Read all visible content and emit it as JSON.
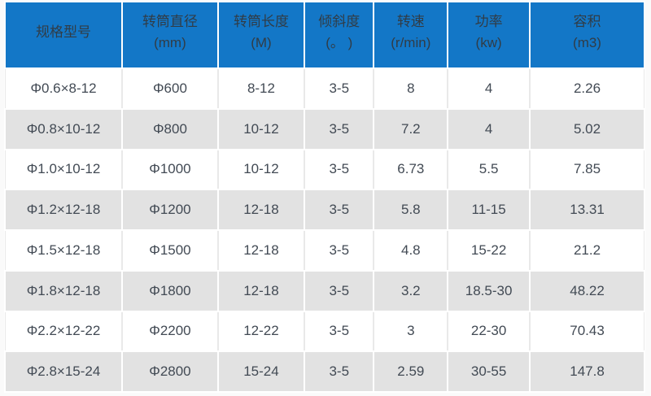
{
  "colors": {
    "header_bg": "#1377c7",
    "header_text": "#313c46",
    "row_bg": "#ffffff",
    "row_alt_bg": "#e2e2e2",
    "cell_text": "#424a54"
  },
  "chart_data": {
    "type": "table",
    "title": "",
    "columns": [
      {
        "label": "规格型号",
        "unit": ""
      },
      {
        "label": "转筒直径",
        "unit": "(mm)"
      },
      {
        "label": "转筒长度",
        "unit": "(M)"
      },
      {
        "label": "倾斜度",
        "unit": "(。 )"
      },
      {
        "label": "转速",
        "unit": "(r/min)"
      },
      {
        "label": "功率",
        "unit": "(kw)"
      },
      {
        "label": "容积",
        "unit": "(m3)"
      }
    ],
    "rows": [
      [
        "Φ0.6×8-12",
        "Φ600",
        "8-12",
        "3-5",
        "8",
        "4",
        "2.26"
      ],
      [
        "Φ0.8×10-12",
        "Φ800",
        "10-12",
        "3-5",
        "7.2",
        "4",
        "5.02"
      ],
      [
        "Φ1.0×10-12",
        "Φ1000",
        "10-12",
        "3-5",
        "6.73",
        "5.5",
        "7.85"
      ],
      [
        "Φ1.2×12-18",
        "Φ1200",
        "12-18",
        "3-5",
        "5.8",
        "11-15",
        "13.31"
      ],
      [
        "Φ1.5×12-18",
        "Φ1500",
        "12-18",
        "3-5",
        "4.8",
        "15-22",
        "21.2"
      ],
      [
        "Φ1.8×12-18",
        "Φ1800",
        "12-18",
        "3-5",
        "3.2",
        "18.5-30",
        "48.22"
      ],
      [
        "Φ2.2×12-22",
        "Φ2200",
        "12-22",
        "3-5",
        "3",
        "22-30",
        "70.43"
      ],
      [
        "Φ2.8×15-24",
        "Φ2800",
        "15-24",
        "3-5",
        "2.59",
        "30-55",
        "147.8"
      ]
    ],
    "column_widths_pct": [
      18.4,
      15.0,
      13.5,
      10.8,
      11.5,
      12.8,
      18.0
    ]
  }
}
